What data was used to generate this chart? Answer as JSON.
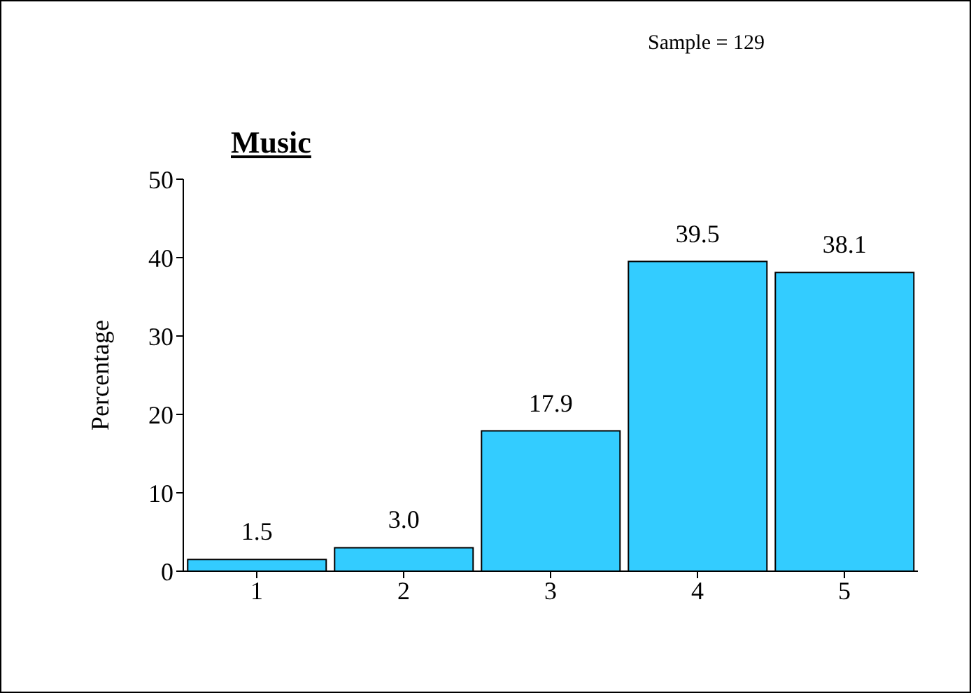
{
  "chart_data": {
    "type": "bar",
    "title": "Music",
    "ylabel": "Percentage",
    "annotations": [
      "Sample = 129"
    ],
    "categories": [
      "1",
      "2",
      "3",
      "4",
      "5"
    ],
    "values": [
      1.5,
      3.0,
      17.9,
      39.5,
      38.1
    ],
    "value_labels": [
      "1.5",
      "3.0",
      "17.9",
      "39.5",
      "38.1"
    ],
    "color": "#33ccff",
    "ylim": [
      0,
      50
    ],
    "yticks": [
      0,
      10,
      20,
      30,
      40,
      50
    ],
    "grid": false,
    "legend": false
  }
}
